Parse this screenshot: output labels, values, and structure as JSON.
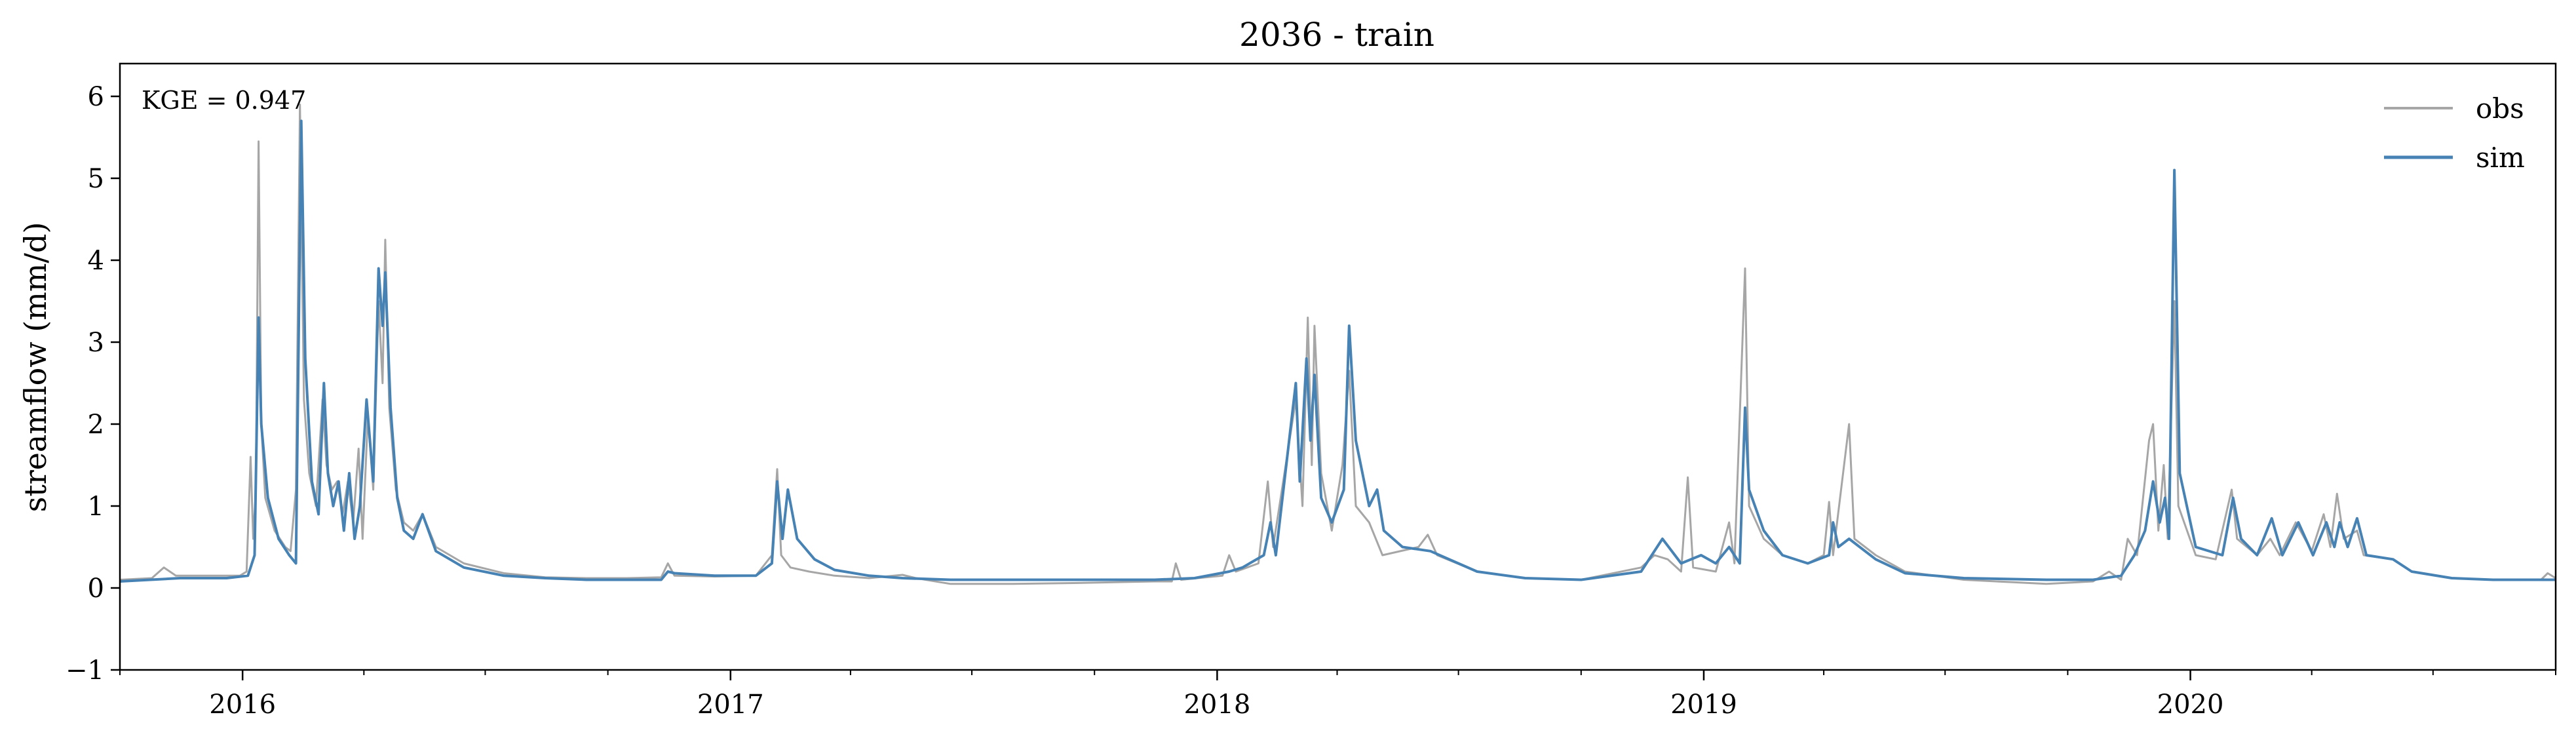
{
  "chart_data": {
    "type": "line",
    "title": "2036 - train",
    "xlabel": "",
    "ylabel": "streamflow (mm/d)",
    "ylim": [
      -1,
      6.4
    ],
    "xlim": [
      "2015-10-01",
      "2020-10-01"
    ],
    "yticks": [
      -1,
      0,
      1,
      2,
      3,
      4,
      5,
      6
    ],
    "ytick_labels": [
      "−1",
      "0",
      "1",
      "2",
      "3",
      "4",
      "5",
      "6"
    ],
    "xticks": [
      "2016-01-01",
      "2017-01-01",
      "2018-01-01",
      "2019-01-01",
      "2020-01-01"
    ],
    "xtick_labels": [
      "2016",
      "2017",
      "2018",
      "2019",
      "2020"
    ],
    "legend_position": "top-right",
    "annotation": "KGE = 0.947",
    "series": [
      {
        "name": "obs",
        "color": "#a6a6a6",
        "points": [
          [
            "2015-10-01",
            0.1
          ],
          [
            "2015-10-25",
            0.12
          ],
          [
            "2015-11-03",
            0.25
          ],
          [
            "2015-11-12",
            0.15
          ],
          [
            "2015-12-10",
            0.15
          ],
          [
            "2015-12-30",
            0.15
          ],
          [
            "2016-01-04",
            0.2
          ],
          [
            "2016-01-07",
            1.6
          ],
          [
            "2016-01-09",
            0.6
          ],
          [
            "2016-01-11",
            1.2
          ],
          [
            "2016-01-13",
            5.45
          ],
          [
            "2016-01-15",
            2.0
          ],
          [
            "2016-01-18",
            1.1
          ],
          [
            "2016-01-25",
            0.7
          ],
          [
            "2016-02-02",
            0.5
          ],
          [
            "2016-02-06",
            0.45
          ],
          [
            "2016-02-10",
            1.2
          ],
          [
            "2016-02-13",
            5.9
          ],
          [
            "2016-02-16",
            2.3
          ],
          [
            "2016-02-20",
            1.4
          ],
          [
            "2016-02-25",
            1.0
          ],
          [
            "2016-03-01",
            2.3
          ],
          [
            "2016-03-04",
            1.5
          ],
          [
            "2016-03-08",
            1.2
          ],
          [
            "2016-03-12",
            1.3
          ],
          [
            "2016-03-16",
            0.9
          ],
          [
            "2016-03-20",
            1.3
          ],
          [
            "2016-03-24",
            0.8
          ],
          [
            "2016-03-28",
            1.7
          ],
          [
            "2016-03-31",
            0.6
          ],
          [
            "2016-04-04",
            2.1
          ],
          [
            "2016-04-08",
            1.2
          ],
          [
            "2016-04-12",
            3.5
          ],
          [
            "2016-04-15",
            2.5
          ],
          [
            "2016-04-17",
            4.25
          ],
          [
            "2016-04-20",
            2.2
          ],
          [
            "2016-04-25",
            1.2
          ],
          [
            "2016-05-01",
            0.8
          ],
          [
            "2016-05-08",
            0.7
          ],
          [
            "2016-05-15",
            0.9
          ],
          [
            "2016-05-25",
            0.5
          ],
          [
            "2016-06-15",
            0.3
          ],
          [
            "2016-07-15",
            0.18
          ],
          [
            "2016-08-15",
            0.13
          ],
          [
            "2016-09-15",
            0.12
          ],
          [
            "2016-10-15",
            0.12
          ],
          [
            "2016-11-10",
            0.13
          ],
          [
            "2016-11-15",
            0.3
          ],
          [
            "2016-11-20",
            0.15
          ],
          [
            "2016-12-20",
            0.14
          ],
          [
            "2017-01-20",
            0.15
          ],
          [
            "2017-02-01",
            0.4
          ],
          [
            "2017-02-05",
            1.45
          ],
          [
            "2017-02-08",
            0.4
          ],
          [
            "2017-02-15",
            0.25
          ],
          [
            "2017-03-01",
            0.2
          ],
          [
            "2017-03-20",
            0.15
          ],
          [
            "2017-04-15",
            0.12
          ],
          [
            "2017-05-10",
            0.16
          ],
          [
            "2017-05-20",
            0.12
          ],
          [
            "2017-06-15",
            0.05
          ],
          [
            "2017-08-01",
            0.05
          ],
          [
            "2017-09-15",
            0.06
          ],
          [
            "2017-11-15",
            0.08
          ],
          [
            "2017-11-28",
            0.08
          ],
          [
            "2017-12-01",
            0.3
          ],
          [
            "2017-12-05",
            0.1
          ],
          [
            "2018-01-05",
            0.15
          ],
          [
            "2018-01-10",
            0.4
          ],
          [
            "2018-01-15",
            0.2
          ],
          [
            "2018-02-01",
            0.3
          ],
          [
            "2018-02-08",
            1.3
          ],
          [
            "2018-02-12",
            0.5
          ],
          [
            "2018-03-01",
            2.3
          ],
          [
            "2018-03-06",
            1.0
          ],
          [
            "2018-03-10",
            3.3
          ],
          [
            "2018-03-13",
            1.5
          ],
          [
            "2018-03-15",
            3.2
          ],
          [
            "2018-03-20",
            1.4
          ],
          [
            "2018-03-28",
            0.7
          ],
          [
            "2018-04-05",
            1.5
          ],
          [
            "2018-04-10",
            2.65
          ],
          [
            "2018-04-15",
            1.0
          ],
          [
            "2018-04-25",
            0.8
          ],
          [
            "2018-05-05",
            0.4
          ],
          [
            "2018-06-01",
            0.5
          ],
          [
            "2018-06-08",
            0.65
          ],
          [
            "2018-06-15",
            0.4
          ],
          [
            "2018-07-15",
            0.2
          ],
          [
            "2018-08-20",
            0.12
          ],
          [
            "2018-10-01",
            0.1
          ],
          [
            "2018-11-15",
            0.25
          ],
          [
            "2018-11-25",
            0.4
          ],
          [
            "2018-12-05",
            0.35
          ],
          [
            "2018-12-15",
            0.2
          ],
          [
            "2018-12-20",
            1.35
          ],
          [
            "2018-12-24",
            0.25
          ],
          [
            "2019-01-10",
            0.2
          ],
          [
            "2019-01-20",
            0.8
          ],
          [
            "2019-01-24",
            0.3
          ],
          [
            "2019-02-01",
            3.9
          ],
          [
            "2019-02-04",
            1.0
          ],
          [
            "2019-02-15",
            0.6
          ],
          [
            "2019-03-01",
            0.4
          ],
          [
            "2019-03-20",
            0.3
          ],
          [
            "2019-04-01",
            0.4
          ],
          [
            "2019-04-05",
            1.05
          ],
          [
            "2019-04-08",
            0.4
          ],
          [
            "2019-04-20",
            2.0
          ],
          [
            "2019-04-24",
            0.6
          ],
          [
            "2019-05-10",
            0.4
          ],
          [
            "2019-06-01",
            0.2
          ],
          [
            "2019-07-15",
            0.1
          ],
          [
            "2019-09-15",
            0.05
          ],
          [
            "2019-10-20",
            0.08
          ],
          [
            "2019-11-01",
            0.2
          ],
          [
            "2019-11-10",
            0.1
          ],
          [
            "2019-11-15",
            0.6
          ],
          [
            "2019-11-22",
            0.4
          ],
          [
            "2019-12-01",
            1.8
          ],
          [
            "2019-12-04",
            2.0
          ],
          [
            "2019-12-08",
            0.7
          ],
          [
            "2019-12-12",
            1.5
          ],
          [
            "2019-12-15",
            0.6
          ],
          [
            "2019-12-20",
            3.5
          ],
          [
            "2019-12-23",
            1.0
          ],
          [
            "2020-01-05",
            0.4
          ],
          [
            "2020-01-20",
            0.35
          ],
          [
            "2020-02-01",
            1.2
          ],
          [
            "2020-02-05",
            0.6
          ],
          [
            "2020-02-20",
            0.4
          ],
          [
            "2020-03-01",
            0.6
          ],
          [
            "2020-03-08",
            0.4
          ],
          [
            "2020-03-20",
            0.8
          ],
          [
            "2020-04-01",
            0.45
          ],
          [
            "2020-04-10",
            0.9
          ],
          [
            "2020-04-15",
            0.5
          ],
          [
            "2020-04-20",
            1.15
          ],
          [
            "2020-04-25",
            0.6
          ],
          [
            "2020-05-05",
            0.7
          ],
          [
            "2020-05-10",
            0.4
          ],
          [
            "2020-06-01",
            0.35
          ],
          [
            "2020-06-15",
            0.2
          ],
          [
            "2020-07-15",
            0.12
          ],
          [
            "2020-08-15",
            0.1
          ],
          [
            "2020-09-20",
            0.1
          ],
          [
            "2020-09-25",
            0.18
          ],
          [
            "2020-10-01",
            0.12
          ]
        ]
      },
      {
        "name": "sim",
        "color": "#4682b4",
        "points": [
          [
            "2015-10-01",
            0.08
          ],
          [
            "2015-11-15",
            0.12
          ],
          [
            "2015-12-20",
            0.12
          ],
          [
            "2016-01-05",
            0.15
          ],
          [
            "2016-01-10",
            0.4
          ],
          [
            "2016-01-13",
            3.3
          ],
          [
            "2016-01-15",
            2.0
          ],
          [
            "2016-01-20",
            1.1
          ],
          [
            "2016-01-28",
            0.6
          ],
          [
            "2016-02-05",
            0.4
          ],
          [
            "2016-02-10",
            0.3
          ],
          [
            "2016-02-14",
            5.7
          ],
          [
            "2016-02-17",
            2.8
          ],
          [
            "2016-02-22",
            1.3
          ],
          [
            "2016-02-27",
            0.9
          ],
          [
            "2016-03-02",
            2.5
          ],
          [
            "2016-03-05",
            1.4
          ],
          [
            "2016-03-09",
            1.0
          ],
          [
            "2016-03-13",
            1.3
          ],
          [
            "2016-03-17",
            0.7
          ],
          [
            "2016-03-21",
            1.4
          ],
          [
            "2016-03-25",
            0.6
          ],
          [
            "2016-03-29",
            1.0
          ],
          [
            "2016-04-03",
            2.3
          ],
          [
            "2016-04-08",
            1.3
          ],
          [
            "2016-04-12",
            3.9
          ],
          [
            "2016-04-15",
            3.2
          ],
          [
            "2016-04-17",
            3.85
          ],
          [
            "2016-04-21",
            2.2
          ],
          [
            "2016-04-26",
            1.1
          ],
          [
            "2016-05-01",
            0.7
          ],
          [
            "2016-05-08",
            0.6
          ],
          [
            "2016-05-15",
            0.9
          ],
          [
            "2016-05-25",
            0.45
          ],
          [
            "2016-06-15",
            0.25
          ],
          [
            "2016-07-15",
            0.15
          ],
          [
            "2016-08-15",
            0.12
          ],
          [
            "2016-09-15",
            0.1
          ],
          [
            "2016-10-15",
            0.1
          ],
          [
            "2016-11-10",
            0.1
          ],
          [
            "2016-11-15",
            0.2
          ],
          [
            "2016-11-20",
            0.18
          ],
          [
            "2016-12-20",
            0.15
          ],
          [
            "2017-01-20",
            0.15
          ],
          [
            "2017-02-01",
            0.3
          ],
          [
            "2017-02-05",
            1.3
          ],
          [
            "2017-02-09",
            0.6
          ],
          [
            "2017-02-13",
            1.2
          ],
          [
            "2017-02-20",
            0.6
          ],
          [
            "2017-03-05",
            0.35
          ],
          [
            "2017-03-20",
            0.22
          ],
          [
            "2017-04-15",
            0.15
          ],
          [
            "2017-05-10",
            0.12
          ],
          [
            "2017-06-15",
            0.1
          ],
          [
            "2017-08-01",
            0.1
          ],
          [
            "2017-09-15",
            0.1
          ],
          [
            "2017-11-15",
            0.1
          ],
          [
            "2017-12-15",
            0.12
          ],
          [
            "2018-01-10",
            0.2
          ],
          [
            "2018-01-20",
            0.25
          ],
          [
            "2018-02-05",
            0.4
          ],
          [
            "2018-02-10",
            0.8
          ],
          [
            "2018-02-14",
            0.4
          ],
          [
            "2018-03-01",
            2.5
          ],
          [
            "2018-03-04",
            1.3
          ],
          [
            "2018-03-09",
            2.8
          ],
          [
            "2018-03-12",
            1.8
          ],
          [
            "2018-03-15",
            2.6
          ],
          [
            "2018-03-20",
            1.1
          ],
          [
            "2018-03-28",
            0.8
          ],
          [
            "2018-04-06",
            1.2
          ],
          [
            "2018-04-10",
            3.2
          ],
          [
            "2018-04-15",
            1.8
          ],
          [
            "2018-04-25",
            1.0
          ],
          [
            "2018-05-01",
            1.2
          ],
          [
            "2018-05-06",
            0.7
          ],
          [
            "2018-05-20",
            0.5
          ],
          [
            "2018-06-10",
            0.45
          ],
          [
            "2018-07-15",
            0.2
          ],
          [
            "2018-08-20",
            0.12
          ],
          [
            "2018-10-01",
            0.1
          ],
          [
            "2018-11-15",
            0.2
          ],
          [
            "2018-12-01",
            0.6
          ],
          [
            "2018-12-15",
            0.3
          ],
          [
            "2018-12-30",
            0.4
          ],
          [
            "2019-01-10",
            0.3
          ],
          [
            "2019-01-20",
            0.5
          ],
          [
            "2019-01-28",
            0.3
          ],
          [
            "2019-02-01",
            2.2
          ],
          [
            "2019-02-04",
            1.2
          ],
          [
            "2019-02-15",
            0.7
          ],
          [
            "2019-03-01",
            0.4
          ],
          [
            "2019-03-20",
            0.3
          ],
          [
            "2019-04-05",
            0.4
          ],
          [
            "2019-04-08",
            0.8
          ],
          [
            "2019-04-12",
            0.5
          ],
          [
            "2019-04-20",
            0.6
          ],
          [
            "2019-05-10",
            0.35
          ],
          [
            "2019-06-01",
            0.18
          ],
          [
            "2019-07-15",
            0.12
          ],
          [
            "2019-09-15",
            0.1
          ],
          [
            "2019-10-20",
            0.1
          ],
          [
            "2019-11-10",
            0.15
          ],
          [
            "2019-11-20",
            0.4
          ],
          [
            "2019-11-28",
            0.7
          ],
          [
            "2019-12-04",
            1.3
          ],
          [
            "2019-12-09",
            0.8
          ],
          [
            "2019-12-13",
            1.1
          ],
          [
            "2019-12-16",
            0.6
          ],
          [
            "2019-12-20",
            5.1
          ],
          [
            "2019-12-24",
            1.4
          ],
          [
            "2020-01-05",
            0.5
          ],
          [
            "2020-01-25",
            0.4
          ],
          [
            "2020-02-02",
            1.1
          ],
          [
            "2020-02-08",
            0.6
          ],
          [
            "2020-02-20",
            0.4
          ],
          [
            "2020-03-02",
            0.85
          ],
          [
            "2020-03-10",
            0.4
          ],
          [
            "2020-03-22",
            0.8
          ],
          [
            "2020-04-02",
            0.4
          ],
          [
            "2020-04-12",
            0.8
          ],
          [
            "2020-04-18",
            0.5
          ],
          [
            "2020-04-22",
            0.8
          ],
          [
            "2020-04-28",
            0.5
          ],
          [
            "2020-05-05",
            0.85
          ],
          [
            "2020-05-12",
            0.4
          ],
          [
            "2020-06-01",
            0.35
          ],
          [
            "2020-06-15",
            0.2
          ],
          [
            "2020-07-15",
            0.12
          ],
          [
            "2020-08-15",
            0.1
          ],
          [
            "2020-10-01",
            0.1
          ]
        ]
      }
    ]
  }
}
